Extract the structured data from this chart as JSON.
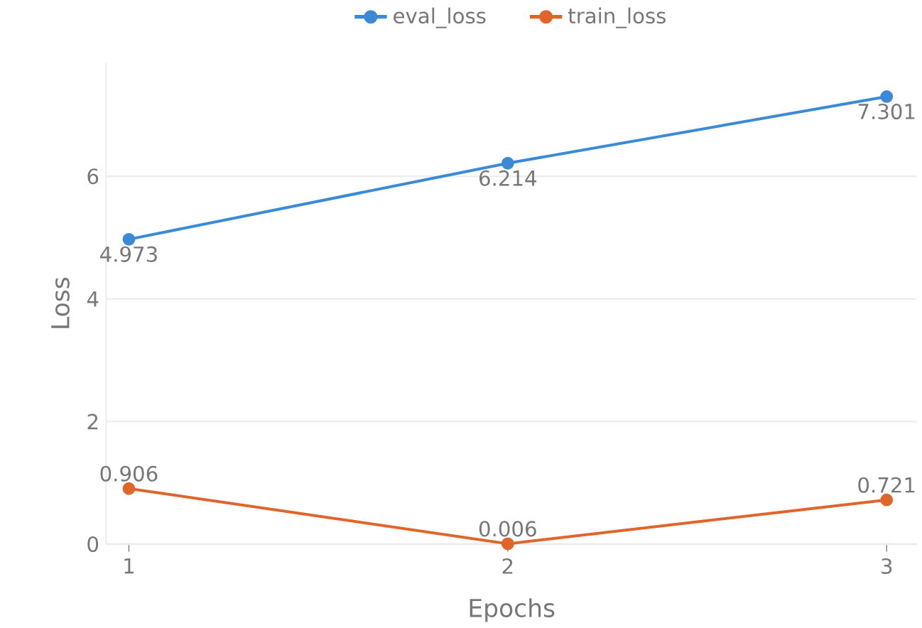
{
  "chart_data": {
    "type": "line",
    "xlabel": "Epochs",
    "ylabel": "Loss",
    "x": [
      1,
      2,
      3
    ],
    "series": [
      {
        "name": "eval_loss",
        "color": "#3a8ad8",
        "values": [
          4.973,
          6.214,
          7.301
        ]
      },
      {
        "name": "train_loss",
        "color": "#e0652b",
        "values": [
          0.906,
          0.006,
          0.721
        ]
      }
    ],
    "xlim": [
      0.94,
      3.08
    ],
    "ylim": [
      0,
      7.85
    ],
    "xticks": [
      1,
      2,
      3
    ],
    "yticks": [
      0,
      2,
      4,
      6
    ],
    "grid": "y",
    "legend": "top",
    "marker": "circle",
    "line_style": "solid",
    "data_labels": true
  }
}
